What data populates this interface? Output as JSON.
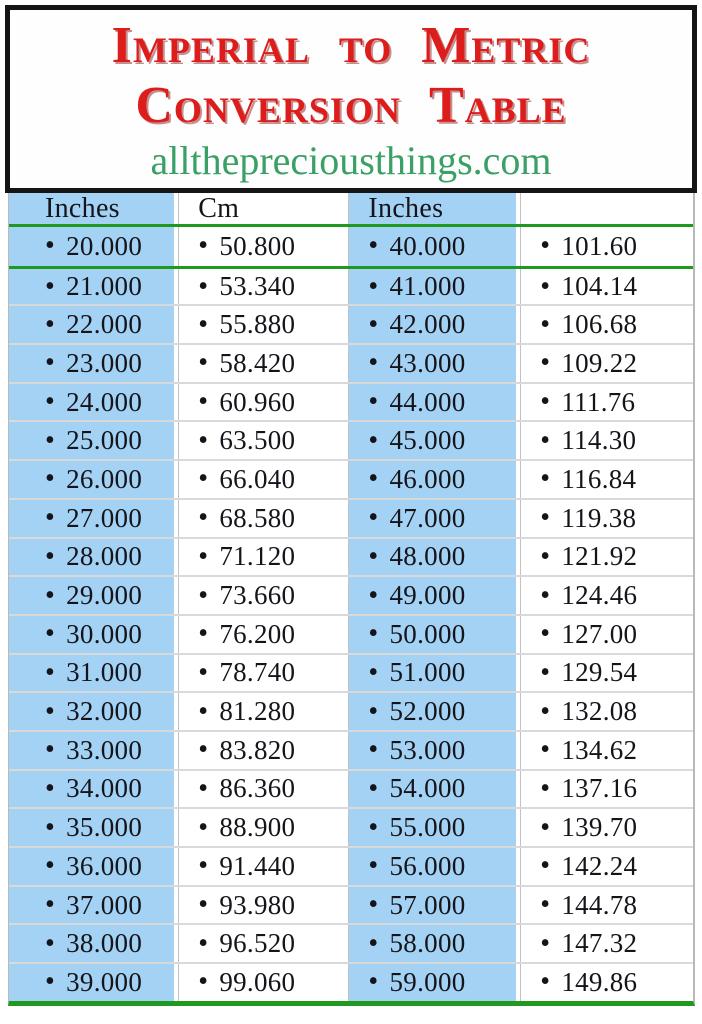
{
  "banner": {
    "title_line1": "Imperial to Metric",
    "title_line2": "Conversion Table",
    "website": "allthepreciousthings.com"
  },
  "table": {
    "bullet": "•",
    "columns": [
      "Inches",
      "Cm",
      "Inches",
      ""
    ],
    "rows": [
      [
        "20.000",
        "50.800",
        "40.000",
        "101.60"
      ],
      [
        "21.000",
        "53.340",
        "41.000",
        "104.14"
      ],
      [
        "22.000",
        "55.880",
        "42.000",
        "106.68"
      ],
      [
        "23.000",
        "58.420",
        "43.000",
        "109.22"
      ],
      [
        "24.000",
        "60.960",
        "44.000",
        "111.76"
      ],
      [
        "25.000",
        "63.500",
        "45.000",
        "114.30"
      ],
      [
        "26.000",
        "66.040",
        "46.000",
        "116.84"
      ],
      [
        "27.000",
        "68.580",
        "47.000",
        "119.38"
      ],
      [
        "28.000",
        "71.120",
        "48.000",
        "121.92"
      ],
      [
        "29.000",
        "73.660",
        "49.000",
        "124.46"
      ],
      [
        "30.000",
        "76.200",
        "50.000",
        "127.00"
      ],
      [
        "31.000",
        "78.740",
        "51.000",
        "129.54"
      ],
      [
        "32.000",
        "81.280",
        "52.000",
        "132.08"
      ],
      [
        "33.000",
        "83.820",
        "53.000",
        "134.62"
      ],
      [
        "34.000",
        "86.360",
        "54.000",
        "137.16"
      ],
      [
        "35.000",
        "88.900",
        "55.000",
        "139.70"
      ],
      [
        "36.000",
        "91.440",
        "56.000",
        "142.24"
      ],
      [
        "37.000",
        "93.980",
        "57.000",
        "144.78"
      ],
      [
        "38.000",
        "96.520",
        "58.000",
        "147.32"
      ],
      [
        "39.000",
        "99.060",
        "59.000",
        "149.86"
      ]
    ]
  },
  "colors": {
    "title_red": "#dd1c1c",
    "url_green": "#3aa066",
    "cell_blue": "#a4d2f4",
    "green_line": "#1f9a1f",
    "row_line_gray": "#d9d9d9",
    "frame_black": "#151515",
    "text_black": "#14141a"
  }
}
